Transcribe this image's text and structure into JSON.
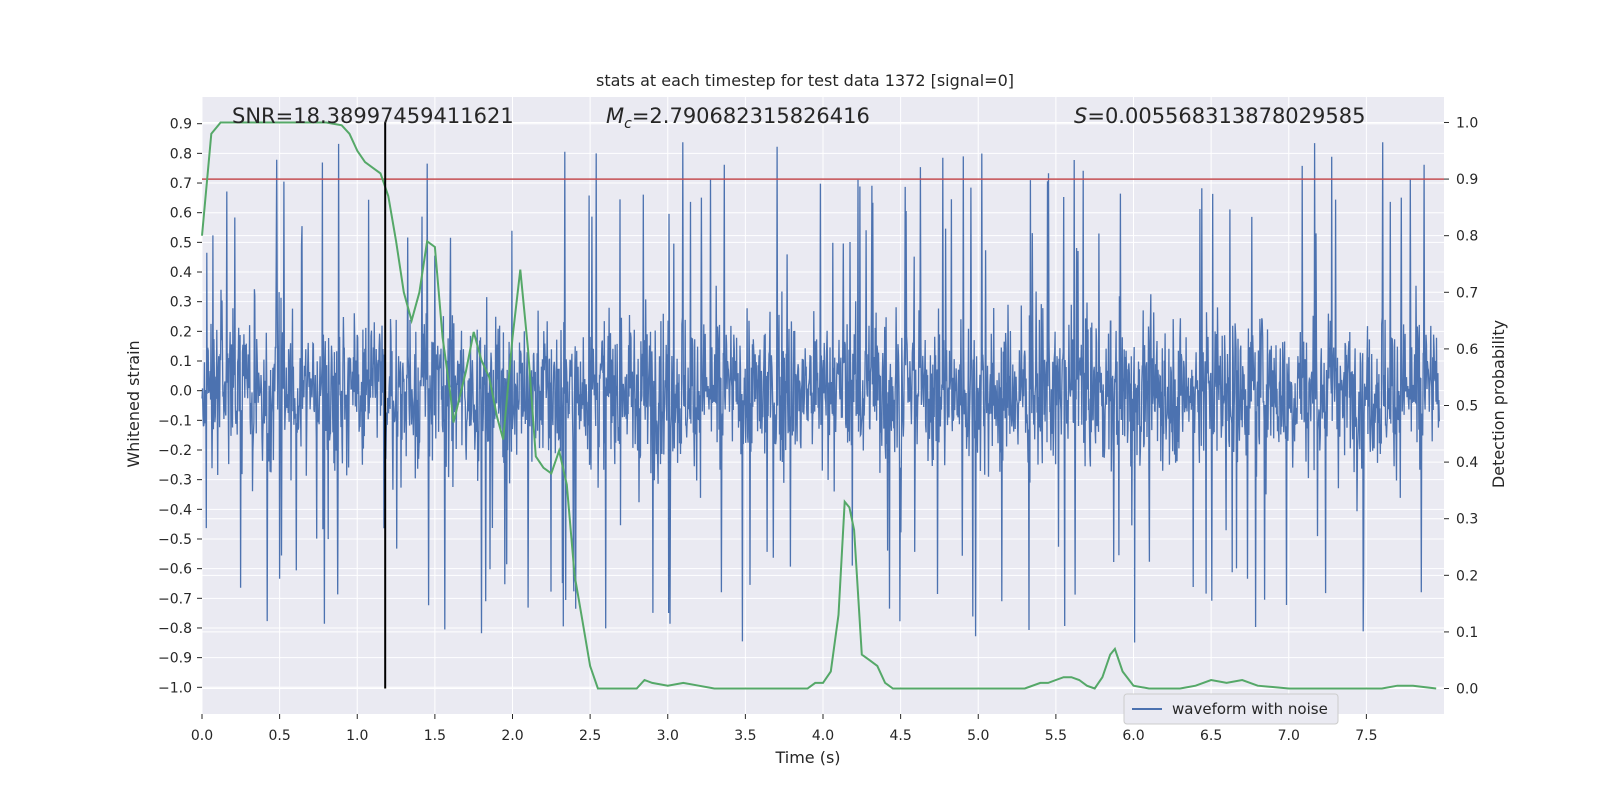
{
  "chart_data": {
    "type": "line",
    "title": "stats at each timestep for test data 1372 [signal=0]",
    "xlabel": "Time (s)",
    "ylabel_left": "Whitened strain",
    "ylabel_right": "Detection probability",
    "xlim": [
      0.0,
      8.0
    ],
    "ylim_left": [
      -1.09,
      0.99
    ],
    "ylim_right": [
      -0.045,
      1.045
    ],
    "x_ticks": [
      "0.0",
      "0.5",
      "1.0",
      "1.5",
      "2.0",
      "2.5",
      "3.0",
      "3.5",
      "4.0",
      "4.5",
      "5.0",
      "5.5",
      "6.0",
      "6.5",
      "7.0",
      "7.5"
    ],
    "y_ticks_left": [
      "0.9",
      "0.8",
      "0.7",
      "0.6",
      "0.5",
      "0.4",
      "0.3",
      "0.2",
      "0.1",
      "0.0",
      "-0.1",
      "-0.2",
      "-0.3",
      "-0.4",
      "-0.5",
      "-0.6",
      "-0.7",
      "-0.8",
      "-0.9",
      "-1.0"
    ],
    "y_ticks_right": [
      "1.0",
      "0.9",
      "0.8",
      "0.7",
      "0.6",
      "0.5",
      "0.4",
      "0.3",
      "0.2",
      "0.1",
      "0.0"
    ],
    "grid": true,
    "legend_position": "bottom-right",
    "annotations": {
      "snr": "SNR=18.38997459411621",
      "mc_symbol": "M",
      "mc_sub": "c",
      "mc_value": "=2.790682315826416",
      "s_symbol": "S",
      "s_value": "=0.005568313878029585"
    },
    "threshold_line": {
      "y_right": 0.9,
      "color": "#c44e52"
    },
    "vertical_marker": {
      "x": 1.18,
      "color": "#000000"
    },
    "colors": {
      "waveform": "#4c72b0",
      "probability": "#55a868",
      "axes_bg": "#eaeaf2",
      "grid": "#ffffff"
    },
    "series": [
      {
        "name": "waveform with noise",
        "axis": "left",
        "style": "dense-noise",
        "typical_range": [
          -0.45,
          0.5
        ],
        "extreme_range": [
          -1.0,
          0.9
        ]
      },
      {
        "axis": "right",
        "x": [
          0.0,
          0.06,
          0.12,
          0.2,
          0.3,
          0.4,
          0.5,
          0.6,
          0.7,
          0.8,
          0.9,
          0.95,
          1.0,
          1.05,
          1.1,
          1.15,
          1.2,
          1.25,
          1.3,
          1.35,
          1.4,
          1.45,
          1.5,
          1.55,
          1.6,
          1.62,
          1.7,
          1.75,
          1.8,
          1.85,
          1.9,
          1.94,
          2.0,
          2.05,
          2.1,
          2.15,
          2.2,
          2.25,
          2.3,
          2.35,
          2.4,
          2.45,
          2.5,
          2.55,
          2.6,
          2.7,
          2.8,
          2.85,
          2.9,
          3.0,
          3.1,
          3.2,
          3.3,
          3.5,
          3.7,
          3.8,
          3.9,
          3.95,
          4.0,
          4.05,
          4.1,
          4.14,
          4.17,
          4.2,
          4.25,
          4.3,
          4.35,
          4.4,
          4.45,
          4.5,
          4.6,
          4.8,
          5.0,
          5.1,
          5.2,
          5.3,
          5.4,
          5.45,
          5.5,
          5.55,
          5.6,
          5.65,
          5.7,
          5.75,
          5.8,
          5.85,
          5.88,
          5.93,
          6.0,
          6.1,
          6.3,
          6.4,
          6.5,
          6.6,
          6.7,
          6.8,
          7.0,
          7.2,
          7.4,
          7.6,
          7.7,
          7.8,
          7.95
        ],
        "y": [
          0.8,
          0.98,
          1.0,
          1.0,
          1.0,
          1.0,
          1.0,
          1.0,
          1.0,
          1.0,
          0.995,
          0.98,
          0.95,
          0.93,
          0.92,
          0.91,
          0.87,
          0.79,
          0.7,
          0.65,
          0.7,
          0.79,
          0.78,
          0.62,
          0.52,
          0.47,
          0.56,
          0.63,
          0.58,
          0.55,
          0.48,
          0.44,
          0.62,
          0.74,
          0.6,
          0.41,
          0.39,
          0.38,
          0.42,
          0.36,
          0.2,
          0.12,
          0.04,
          0.0,
          0.0,
          0.0,
          0.0,
          0.015,
          0.01,
          0.005,
          0.01,
          0.005,
          0.0,
          0.0,
          0.0,
          0.0,
          0.0,
          0.01,
          0.01,
          0.03,
          0.13,
          0.33,
          0.32,
          0.28,
          0.06,
          0.05,
          0.04,
          0.01,
          0.0,
          0.0,
          0.0,
          0.0,
          0.0,
          0.0,
          0.0,
          0.0,
          0.01,
          0.01,
          0.015,
          0.02,
          0.02,
          0.015,
          0.005,
          0.0,
          0.02,
          0.06,
          0.07,
          0.03,
          0.005,
          0.0,
          0.0,
          0.005,
          0.015,
          0.01,
          0.015,
          0.005,
          0.0,
          0.0,
          0.0,
          0.0,
          0.005,
          0.005,
          0.0
        ]
      }
    ]
  }
}
